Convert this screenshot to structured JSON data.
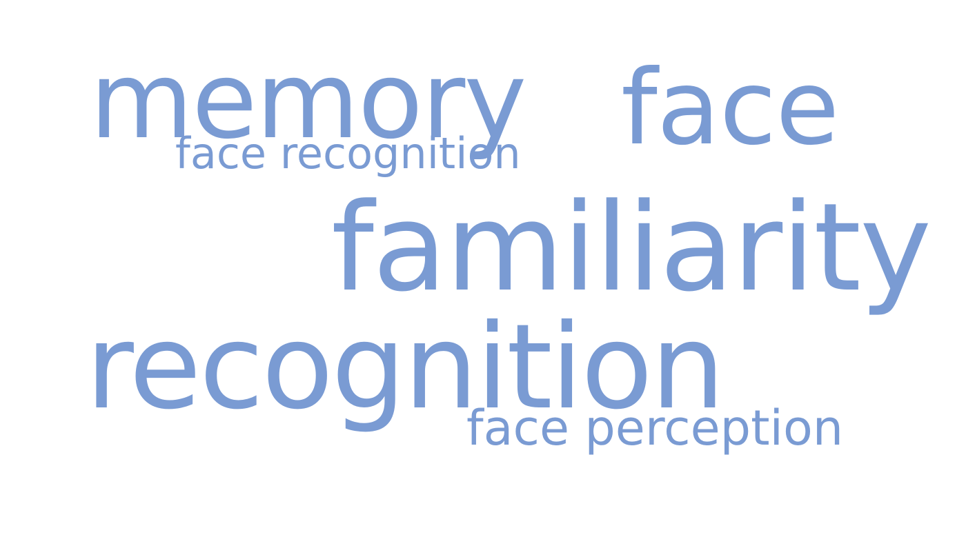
{
  "word_cloud": {
    "color": "#7A9BD3",
    "words": {
      "memory": "memory",
      "face": "face",
      "face_recognition": "face recognition",
      "familiarity": "familiarity",
      "recognition": "recognition",
      "face_perception": "face perception"
    }
  }
}
